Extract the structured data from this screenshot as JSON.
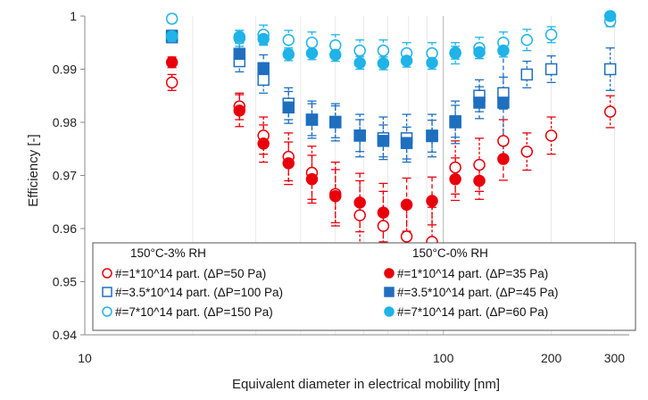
{
  "chart_data": {
    "type": "scatter",
    "title": "",
    "xlabel": "Equivalent diameter in electrical mobility [nm]",
    "ylabel": "Efficiency [-]",
    "x_scale": "log",
    "xlim": [
      10,
      330
    ],
    "ylim": [
      0.94,
      1.0
    ],
    "x_ticks": [
      10,
      100,
      200,
      300
    ],
    "x_tick_labels": [
      "10",
      "100",
      "200",
      "300"
    ],
    "y_ticks": [
      0.94,
      0.95,
      0.96,
      0.97,
      0.98,
      0.99,
      1.0
    ],
    "y_tick_labels": [
      "0.94",
      "0.95",
      "0.96",
      "0.97",
      "0.98",
      "0.99",
      "1"
    ],
    "grid": "vertical",
    "legend": {
      "placement": "bottom-inside",
      "group_titles": [
        "150°C-3% RH",
        "150°C-0% RH"
      ]
    },
    "series": [
      {
        "name": "#=1*10^14 part. (ΔP=50 Pa)",
        "group": "150°C-3% RH",
        "marker": "circle",
        "filled": false,
        "color": "#e8000b",
        "points": [
          {
            "x": 17.5,
            "y": 0.9875,
            "err": 0.0015
          },
          {
            "x": 27,
            "y": 0.983,
            "err": 0.0025
          },
          {
            "x": 31.5,
            "y": 0.9775,
            "err": 0.0035
          },
          {
            "x": 37,
            "y": 0.9735,
            "err": 0.0045
          },
          {
            "x": 43,
            "y": 0.9705,
            "err": 0.005
          },
          {
            "x": 50,
            "y": 0.9665,
            "err": 0.006
          },
          {
            "x": 58.5,
            "y": 0.9625,
            "err": 0.0065
          },
          {
            "x": 68,
            "y": 0.9605,
            "err": 0.0065
          },
          {
            "x": 79,
            "y": 0.9585,
            "err": 0.0065
          },
          {
            "x": 93,
            "y": 0.9575,
            "err": 0.0065
          },
          {
            "x": 108,
            "y": 0.9715,
            "err": 0.005
          },
          {
            "x": 126,
            "y": 0.972,
            "err": 0.005
          },
          {
            "x": 147,
            "y": 0.9765,
            "err": 0.004
          },
          {
            "x": 171,
            "y": 0.9745,
            "err": 0.0035
          },
          {
            "x": 200,
            "y": 0.9775,
            "err": 0.0035
          },
          {
            "x": 292,
            "y": 0.982,
            "err": 0.003
          }
        ]
      },
      {
        "name": "#=1*10^14 part. (ΔP=35 Pa)",
        "group": "150°C-0% RH",
        "marker": "circle",
        "filled": true,
        "color": "#e8000b",
        "points": [
          {
            "x": 17.5,
            "y": 0.9913,
            "err": 0.001
          },
          {
            "x": 27,
            "y": 0.9822,
            "err": 0.003
          },
          {
            "x": 31.5,
            "y": 0.976,
            "err": 0.0035
          },
          {
            "x": 37,
            "y": 0.9723,
            "err": 0.004
          },
          {
            "x": 43,
            "y": 0.9693,
            "err": 0.0045
          },
          {
            "x": 50,
            "y": 0.9661,
            "err": 0.005
          },
          {
            "x": 58.5,
            "y": 0.9649,
            "err": 0.0055
          },
          {
            "x": 68,
            "y": 0.963,
            "err": 0.0055
          },
          {
            "x": 79,
            "y": 0.9645,
            "err": 0.005
          },
          {
            "x": 93,
            "y": 0.9652,
            "err": 0.0045
          },
          {
            "x": 108,
            "y": 0.9693,
            "err": 0.004
          },
          {
            "x": 126,
            "y": 0.969,
            "err": 0.0035
          },
          {
            "x": 147,
            "y": 0.9731,
            "err": 0.004
          }
        ]
      },
      {
        "name": "#=3.5*10^14 part. (ΔP=100 Pa)",
        "group": "150°C-3% RH",
        "marker": "square",
        "filled": false,
        "color": "#1f6fbf",
        "points": [
          {
            "x": 17.5,
            "y": 0.996,
            "err": 0.001
          },
          {
            "x": 27,
            "y": 0.9915,
            "err": 0.002
          },
          {
            "x": 31.5,
            "y": 0.988,
            "err": 0.0025
          },
          {
            "x": 37,
            "y": 0.9835,
            "err": 0.003
          },
          {
            "x": 43,
            "y": 0.9805,
            "err": 0.0035
          },
          {
            "x": 50,
            "y": 0.98,
            "err": 0.0035
          },
          {
            "x": 58.5,
            "y": 0.9775,
            "err": 0.004
          },
          {
            "x": 68,
            "y": 0.977,
            "err": 0.004
          },
          {
            "x": 79,
            "y": 0.977,
            "err": 0.0045
          },
          {
            "x": 93,
            "y": 0.9775,
            "err": 0.004
          },
          {
            "x": 108,
            "y": 0.98,
            "err": 0.004
          },
          {
            "x": 126,
            "y": 0.985,
            "err": 0.003
          },
          {
            "x": 147,
            "y": 0.9855,
            "err": 0.003
          },
          {
            "x": 171,
            "y": 0.989,
            "err": 0.0025
          },
          {
            "x": 200,
            "y": 0.99,
            "err": 0.0025
          },
          {
            "x": 292,
            "y": 0.99,
            "err": 0.004
          }
        ]
      },
      {
        "name": "#=3.5*10^14 part. (ΔP=45 Pa)",
        "group": "150°C-0% RH",
        "marker": "square",
        "filled": true,
        "color": "#1f6fbf",
        "points": [
          {
            "x": 17.5,
            "y": 0.9963,
            "err": 0.001
          },
          {
            "x": 27,
            "y": 0.9929,
            "err": 0.002
          },
          {
            "x": 31.5,
            "y": 0.9902,
            "err": 0.0025
          },
          {
            "x": 37,
            "y": 0.9828,
            "err": 0.003
          },
          {
            "x": 43,
            "y": 0.9805,
            "err": 0.003
          },
          {
            "x": 50,
            "y": 0.9801,
            "err": 0.003
          },
          {
            "x": 58.5,
            "y": 0.9775,
            "err": 0.003
          },
          {
            "x": 68,
            "y": 0.9765,
            "err": 0.003
          },
          {
            "x": 79,
            "y": 0.9761,
            "err": 0.003
          },
          {
            "x": 93,
            "y": 0.9774,
            "err": 0.003
          },
          {
            "x": 108,
            "y": 0.9802,
            "err": 0.003
          },
          {
            "x": 126,
            "y": 0.9837,
            "err": 0.003
          },
          {
            "x": 147,
            "y": 0.9837,
            "err": 0.011
          }
        ]
      },
      {
        "name": "#=7*10^14 part. (ΔP=150 Pa)",
        "group": "150°C-3% RH",
        "marker": "circle",
        "filled": false,
        "color": "#1fb3e8",
        "points": [
          {
            "x": 17.5,
            "y": 0.9995,
            "err": 0.0008
          },
          {
            "x": 27,
            "y": 0.9958,
            "err": 0.0015
          },
          {
            "x": 31.5,
            "y": 0.9965,
            "err": 0.0018
          },
          {
            "x": 37,
            "y": 0.9955,
            "err": 0.0018
          },
          {
            "x": 43,
            "y": 0.995,
            "err": 0.002
          },
          {
            "x": 50,
            "y": 0.9945,
            "err": 0.002
          },
          {
            "x": 58.5,
            "y": 0.9935,
            "err": 0.002
          },
          {
            "x": 68,
            "y": 0.9935,
            "err": 0.002
          },
          {
            "x": 79,
            "y": 0.993,
            "err": 0.002
          },
          {
            "x": 93,
            "y": 0.993,
            "err": 0.002
          },
          {
            "x": 108,
            "y": 0.993,
            "err": 0.002
          },
          {
            "x": 126,
            "y": 0.994,
            "err": 0.002
          },
          {
            "x": 147,
            "y": 0.995,
            "err": 0.002
          },
          {
            "x": 171,
            "y": 0.9955,
            "err": 0.002
          },
          {
            "x": 200,
            "y": 0.9965,
            "err": 0.0015
          },
          {
            "x": 292,
            "y": 0.999,
            "err": 0.001
          }
        ]
      },
      {
        "name": "#=7*10^14 part. (ΔP=60 Pa)",
        "group": "150°C-0% RH",
        "marker": "circle",
        "filled": true,
        "color": "#1fb3e8",
        "points": [
          {
            "x": 17.5,
            "y": 0.9962,
            "err": 0.0008
          },
          {
            "x": 27,
            "y": 0.9961,
            "err": 0.0012
          },
          {
            "x": 31.5,
            "y": 0.9957,
            "err": 0.0012
          },
          {
            "x": 37,
            "y": 0.9928,
            "err": 0.0012
          },
          {
            "x": 43,
            "y": 0.993,
            "err": 0.0012
          },
          {
            "x": 50,
            "y": 0.9927,
            "err": 0.0012
          },
          {
            "x": 58.5,
            "y": 0.9912,
            "err": 0.0012
          },
          {
            "x": 68,
            "y": 0.9911,
            "err": 0.0012
          },
          {
            "x": 79,
            "y": 0.9916,
            "err": 0.0012
          },
          {
            "x": 93,
            "y": 0.9912,
            "err": 0.0012
          },
          {
            "x": 108,
            "y": 0.9931,
            "err": 0.0012
          },
          {
            "x": 126,
            "y": 0.9932,
            "err": 0.0012
          },
          {
            "x": 147,
            "y": 0.9935,
            "err": 0.0012
          },
          {
            "x": 292,
            "y": 1.0,
            "err": 0.0008
          }
        ]
      }
    ]
  }
}
